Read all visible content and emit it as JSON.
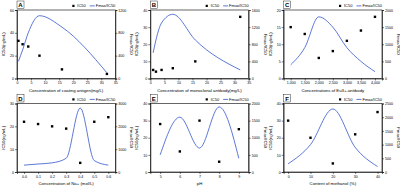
{
  "chart_data": [
    {
      "type": "line",
      "title": "A",
      "x_label": "Concentration of coating antigen(mg/L)",
      "y_label": "IC50(ng/mL)",
      "y2_label": "Fmax/IC50",
      "x": [
        0.5,
        2,
        4,
        8,
        16,
        32
      ],
      "xlim": [
        0,
        35
      ],
      "xticks": [
        0,
        5,
        10,
        15,
        20,
        25,
        30,
        35
      ],
      "ylim": [
        0,
        60
      ],
      "yticks": [
        0,
        20,
        40,
        60
      ],
      "y2lim": [
        0,
        1200
      ],
      "y2ticks": [
        0,
        400,
        800,
        1200
      ],
      "grid": false,
      "legend": "upper right",
      "series": [
        {
          "name": "IC50",
          "color": "#000000",
          "marker": "square",
          "line_style": "none",
          "values": [
            33,
            30,
            28,
            20,
            8,
            4
          ]
        },
        {
          "name": "Fmax/IC50",
          "color": "#3355cc",
          "marker": "none",
          "line_style": "solid",
          "axis": "y2",
          "values": [
            300,
            500,
            800,
            1100,
            900,
            100
          ]
        }
      ]
    },
    {
      "type": "line",
      "title": "B",
      "x_label": "Concentration of monoclonal antibody(mg/L)",
      "y_label": "IC50(ng/mL)",
      "y2_label": "Fmax/IC50",
      "x": [
        1,
        2,
        4,
        8,
        16,
        32
      ],
      "xlim": [
        0,
        35
      ],
      "xticks": [
        0,
        5,
        10,
        15,
        20,
        25,
        30,
        35
      ],
      "ylim": [
        0,
        40
      ],
      "yticks": [
        0,
        10,
        20,
        30,
        40
      ],
      "y2lim": [
        0,
        1600
      ],
      "y2ticks": [
        0,
        400,
        800,
        1200,
        1600
      ],
      "grid": false,
      "legend": "upper right",
      "series": [
        {
          "name": "IC50",
          "color": "#000000",
          "marker": "square",
          "line_style": "none",
          "values": [
            5,
            4,
            5,
            6,
            10,
            36
          ]
        },
        {
          "name": "Fmax/IC50",
          "color": "#3355cc",
          "marker": "none",
          "line_style": "solid",
          "axis": "y2",
          "values": [
            600,
            900,
            1300,
            1500,
            900,
            200
          ]
        }
      ]
    },
    {
      "type": "line",
      "title": "C",
      "x_label": "Concentrations of Eu3+-antibody",
      "y_label": "IC50(ng/mL)",
      "y2_label": "Fmax/IC50",
      "x": [
        1000,
        1500,
        2000,
        2500,
        3000,
        3500,
        4000
      ],
      "xlim": [
        750,
        4250
      ],
      "xticks": [
        {
          "value": 1000,
          "label": "1,000"
        },
        {
          "value": 1500,
          "label": "1,500"
        },
        {
          "value": 2000,
          "label": "2,000"
        },
        {
          "value": 2500,
          "label": "2,500"
        },
        {
          "value": 3000,
          "label": "3,000"
        },
        {
          "value": 3500,
          "label": "3,500"
        },
        {
          "value": 4000,
          "label": "4,000"
        }
      ],
      "ylim": [
        0,
        20
      ],
      "yticks": [
        0,
        5,
        10,
        15,
        20
      ],
      "y2lim": [
        0,
        2000
      ],
      "y2ticks": [
        0,
        500,
        1000,
        1500,
        2000
      ],
      "grid": false,
      "legend": "upper right",
      "series": [
        {
          "name": "IC50",
          "color": "#000000",
          "marker": "square",
          "line_style": "none",
          "values": [
            15,
            13,
            6,
            8,
            11,
            14,
            18
          ]
        },
        {
          "name": "Fmax/IC50",
          "color": "#3355cc",
          "marker": "none",
          "line_style": "solid",
          "axis": "y2",
          "values": [
            400,
            900,
            1800,
            1500,
            900,
            500,
            200
          ]
        }
      ]
    },
    {
      "type": "line",
      "title": "D",
      "x_label": "Concentration of Na+ (mol/L)",
      "y_label": "IC50(ng/mL)",
      "y2_label": "Fmax/IC50",
      "x": [
        0,
        0.1,
        0.2,
        0.3,
        0.4,
        0.5,
        0.6
      ],
      "xlim": [
        -0.05,
        0.65
      ],
      "xticks": [
        {
          "value": 0,
          "label": "0.0"
        },
        0.1,
        0.2,
        0.3,
        0.4,
        0.5,
        0.6
      ],
      "ylim": [
        0,
        30
      ],
      "yticks": [
        0,
        10,
        20,
        30
      ],
      "y2lim": [
        0,
        3000
      ],
      "y2ticks": [
        0,
        1000,
        2000,
        3000
      ],
      "grid": false,
      "legend": "upper right",
      "series": [
        {
          "name": "IC50",
          "color": "#000000",
          "marker": "square",
          "line_style": "none",
          "values": [
            22,
            21,
            20,
            19,
            4,
            22,
            24
          ]
        },
        {
          "name": "Fmax/IC50",
          "color": "#3355cc",
          "marker": "none",
          "line_style": "solid",
          "axis": "y2",
          "values": [
            300,
            350,
            400,
            600,
            2800,
            500,
            300
          ]
        }
      ]
    },
    {
      "type": "line",
      "title": "E",
      "x_label": "pH",
      "y_label": "IC50(ng/mL)",
      "y2_label": "Fmax/IC50",
      "x": [
        5,
        6,
        7,
        8,
        9
      ],
      "xlim": [
        4.5,
        9.5
      ],
      "xticks": [
        5,
        6,
        7,
        8,
        9
      ],
      "ylim": [
        0,
        40
      ],
      "yticks": [
        0,
        10,
        20,
        30,
        40
      ],
      "y2lim": [
        0,
        2000
      ],
      "y2ticks": [
        0,
        500,
        1000,
        1500,
        2000
      ],
      "grid": false,
      "legend": "upper right",
      "series": [
        {
          "name": "IC50",
          "color": "#000000",
          "marker": "square",
          "line_style": "none",
          "values": [
            28,
            12,
            30,
            6,
            25
          ]
        },
        {
          "name": "Fmax/IC50",
          "color": "#3355cc",
          "marker": "none",
          "line_style": "solid",
          "axis": "y2",
          "values": [
            500,
            1600,
            700,
            1900,
            400
          ]
        }
      ]
    },
    {
      "type": "line",
      "title": "F",
      "x_label": "Content of methanol (%)",
      "y_label": "IC50(ng/mL)",
      "y2_label": "Fmax/IC50",
      "x": [
        0,
        10,
        20,
        30,
        40
      ],
      "xlim": [
        -2,
        42
      ],
      "xticks": [
        0,
        10,
        20,
        30,
        40
      ],
      "ylim": [
        0,
        40
      ],
      "yticks": [
        0,
        10,
        20,
        30,
        40
      ],
      "y2lim": [
        0,
        2500
      ],
      "y2ticks": [
        0,
        500,
        1000,
        1500,
        2000,
        2500
      ],
      "grid": false,
      "legend": "upper right",
      "series": [
        {
          "name": "IC50",
          "color": "#000000",
          "marker": "square",
          "line_style": "none",
          "values": [
            30,
            20,
            5,
            22,
            35
          ]
        },
        {
          "name": "Fmax/IC50",
          "color": "#3355cc",
          "marker": "none",
          "line_style": "solid",
          "axis": "y2",
          "values": [
            300,
            1000,
            2300,
            900,
            200
          ]
        }
      ]
    }
  ]
}
